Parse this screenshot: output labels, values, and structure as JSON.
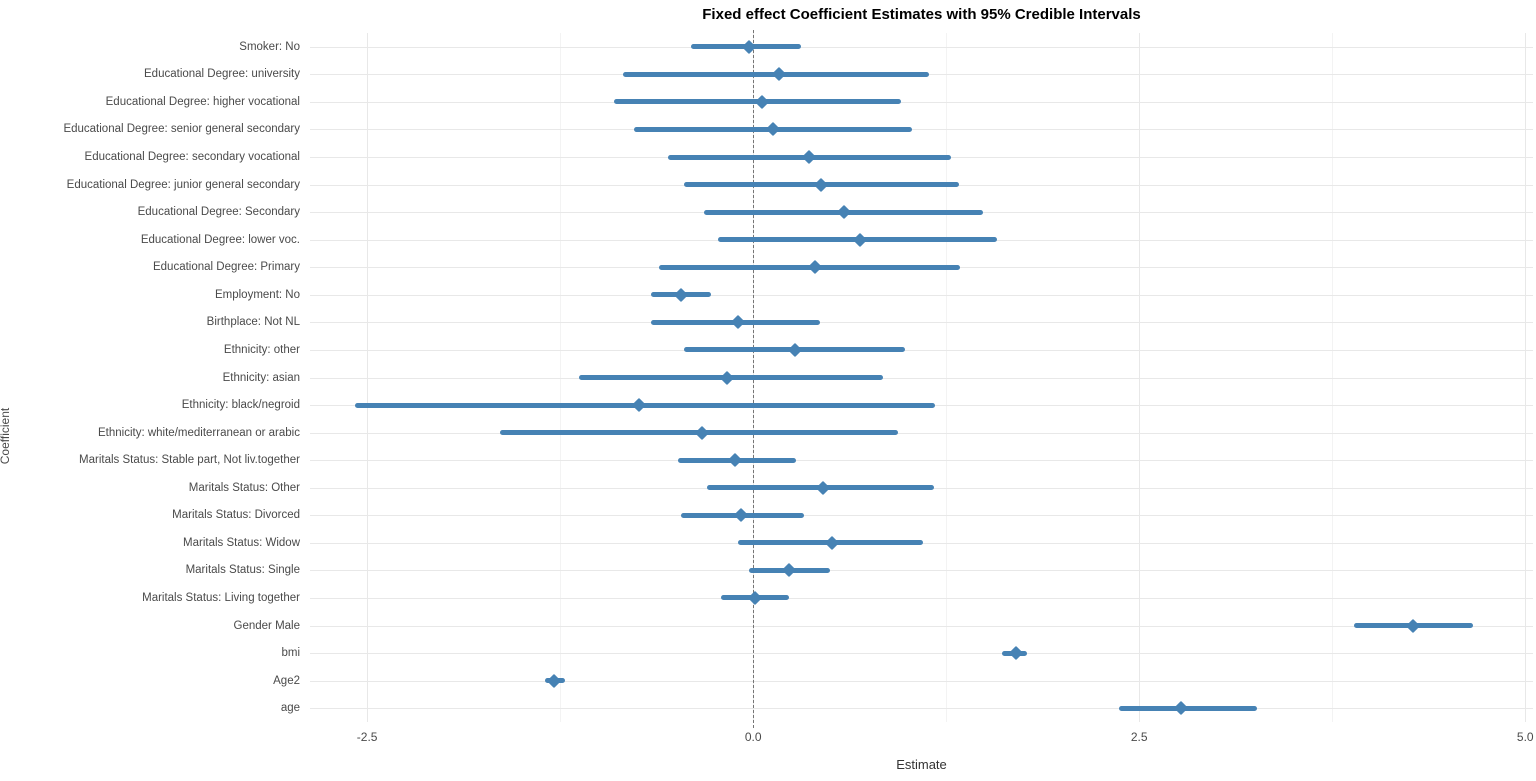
{
  "title": "Fixed effect Coefficient Estimates with 95% Credible Intervals",
  "axes": {
    "xlabel": "Estimate",
    "ylabel": "Coefficient",
    "x_tick_labels": [
      "-2.5",
      "0.0",
      "2.5",
      "5.0"
    ],
    "x_tick_values": [
      -2.5,
      0.0,
      2.5,
      5.0
    ],
    "x_minor_tick_values": [
      -1.25,
      1.25,
      3.75
    ]
  },
  "colors": {
    "interval": "#4682B4",
    "zero_line": "#757575",
    "grid_major": "#E8E8E8",
    "grid_minor": "#F3F3F3",
    "axis_text": "#4a4a4a",
    "title_text": "#000000",
    "background": "#FFFFFF"
  },
  "chart_data": {
    "type": "scatter",
    "variant": "forest-plot-horizontal-intervals",
    "title": "Fixed effect Coefficient Estimates with 95% Credible Intervals",
    "xlabel": "Estimate",
    "ylabel": "Coefficient",
    "xlim": [
      -2.87,
      5.05
    ],
    "grid": true,
    "legend": "none",
    "zero_reference_line": 0.0,
    "rows": [
      {
        "label": "Smoker: No",
        "estimate": -0.03,
        "lower": -0.4,
        "upper": 0.31
      },
      {
        "label": "Educational Degree: university",
        "estimate": 0.17,
        "lower": -0.84,
        "upper": 1.14
      },
      {
        "label": "Educational Degree: higher vocational",
        "estimate": 0.06,
        "lower": -0.9,
        "upper": 0.96
      },
      {
        "label": "Educational Degree: senior general secondary",
        "estimate": 0.13,
        "lower": -0.77,
        "upper": 1.03
      },
      {
        "label": "Educational Degree: secondary vocational",
        "estimate": 0.36,
        "lower": -0.55,
        "upper": 1.28
      },
      {
        "label": "Educational Degree: junior general secondary",
        "estimate": 0.44,
        "lower": -0.45,
        "upper": 1.33
      },
      {
        "label": "Educational Degree: Secondary",
        "estimate": 0.59,
        "lower": -0.32,
        "upper": 1.49
      },
      {
        "label": "Educational Degree: lower voc.",
        "estimate": 0.69,
        "lower": -0.23,
        "upper": 1.58
      },
      {
        "label": "Educational Degree: Primary",
        "estimate": 0.4,
        "lower": -0.61,
        "upper": 1.34
      },
      {
        "label": "Employment: No",
        "estimate": -0.47,
        "lower": -0.66,
        "upper": -0.27
      },
      {
        "label": "Birthplace: Not NL",
        "estimate": -0.1,
        "lower": -0.66,
        "upper": 0.43
      },
      {
        "label": "Ethnicity: other",
        "estimate": 0.27,
        "lower": -0.45,
        "upper": 0.98
      },
      {
        "label": "Ethnicity: asian",
        "estimate": -0.17,
        "lower": -1.13,
        "upper": 0.84
      },
      {
        "label": "Ethnicity: black/negroid",
        "estimate": -0.74,
        "lower": -2.58,
        "upper": 1.18
      },
      {
        "label": "Ethnicity: white/mediterranean or arabic",
        "estimate": -0.33,
        "lower": -1.64,
        "upper": 0.94
      },
      {
        "label": "Maritals Status: Stable part, Not liv.together",
        "estimate": -0.12,
        "lower": -0.49,
        "upper": 0.28
      },
      {
        "label": "Maritals Status: Other",
        "estimate": 0.45,
        "lower": -0.3,
        "upper": 1.17
      },
      {
        "label": "Maritals Status: Divorced",
        "estimate": -0.08,
        "lower": -0.47,
        "upper": 0.33
      },
      {
        "label": "Maritals Status: Widow",
        "estimate": 0.51,
        "lower": -0.1,
        "upper": 1.1
      },
      {
        "label": "Maritals Status: Single",
        "estimate": 0.23,
        "lower": -0.03,
        "upper": 0.5
      },
      {
        "label": "Maritals Status: Living together",
        "estimate": 0.01,
        "lower": -0.21,
        "upper": 0.23
      },
      {
        "label": "Gender Male",
        "estimate": 4.27,
        "lower": 3.89,
        "upper": 4.66
      },
      {
        "label": "bmi",
        "estimate": 1.7,
        "lower": 1.61,
        "upper": 1.77
      },
      {
        "label": "Age2",
        "estimate": -1.29,
        "lower": -1.35,
        "upper": -1.22
      },
      {
        "label": "age",
        "estimate": 2.77,
        "lower": 2.37,
        "upper": 3.26
      }
    ]
  }
}
